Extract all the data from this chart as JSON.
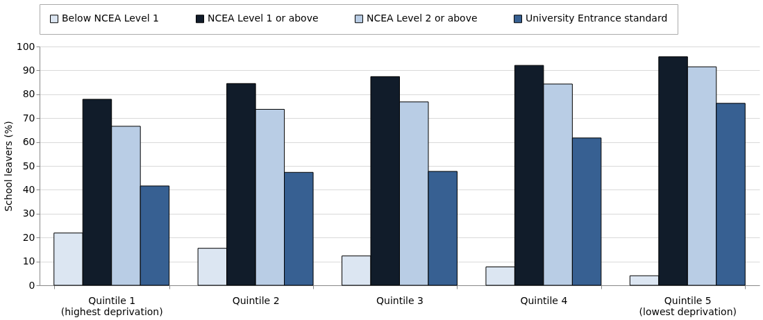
{
  "chart_data": {
    "type": "bar",
    "ylabel": "School leavers (%)",
    "categories": [
      "Quintile 1\n(highest deprivation)",
      "Quintile 2",
      "Quintile 3",
      "Quintile 4",
      "Quintile 5\n(lowest deprivation)"
    ],
    "series": [
      {
        "name": "Below NCEA Level 1",
        "color": "#dce6f2",
        "values": [
          21.9,
          15.5,
          12.3,
          7.7,
          4.0
        ]
      },
      {
        "name": "NCEA Level 1 or above",
        "color": "#111c2a",
        "values": [
          77.9,
          84.5,
          87.4,
          92.1,
          95.7
        ]
      },
      {
        "name": "NCEA Level 2 or above",
        "color": "#b9cde5",
        "values": [
          66.6,
          73.7,
          76.8,
          84.3,
          91.5
        ]
      },
      {
        "name": "University Entrance standard",
        "color": "#376092",
        "values": [
          41.6,
          47.3,
          47.7,
          61.7,
          76.2
        ]
      }
    ],
    "ylim": [
      0,
      100
    ],
    "yticks": [
      0,
      10,
      20,
      30,
      40,
      50,
      60,
      70,
      80,
      90,
      100
    ],
    "grid": "y",
    "legend": "top"
  }
}
